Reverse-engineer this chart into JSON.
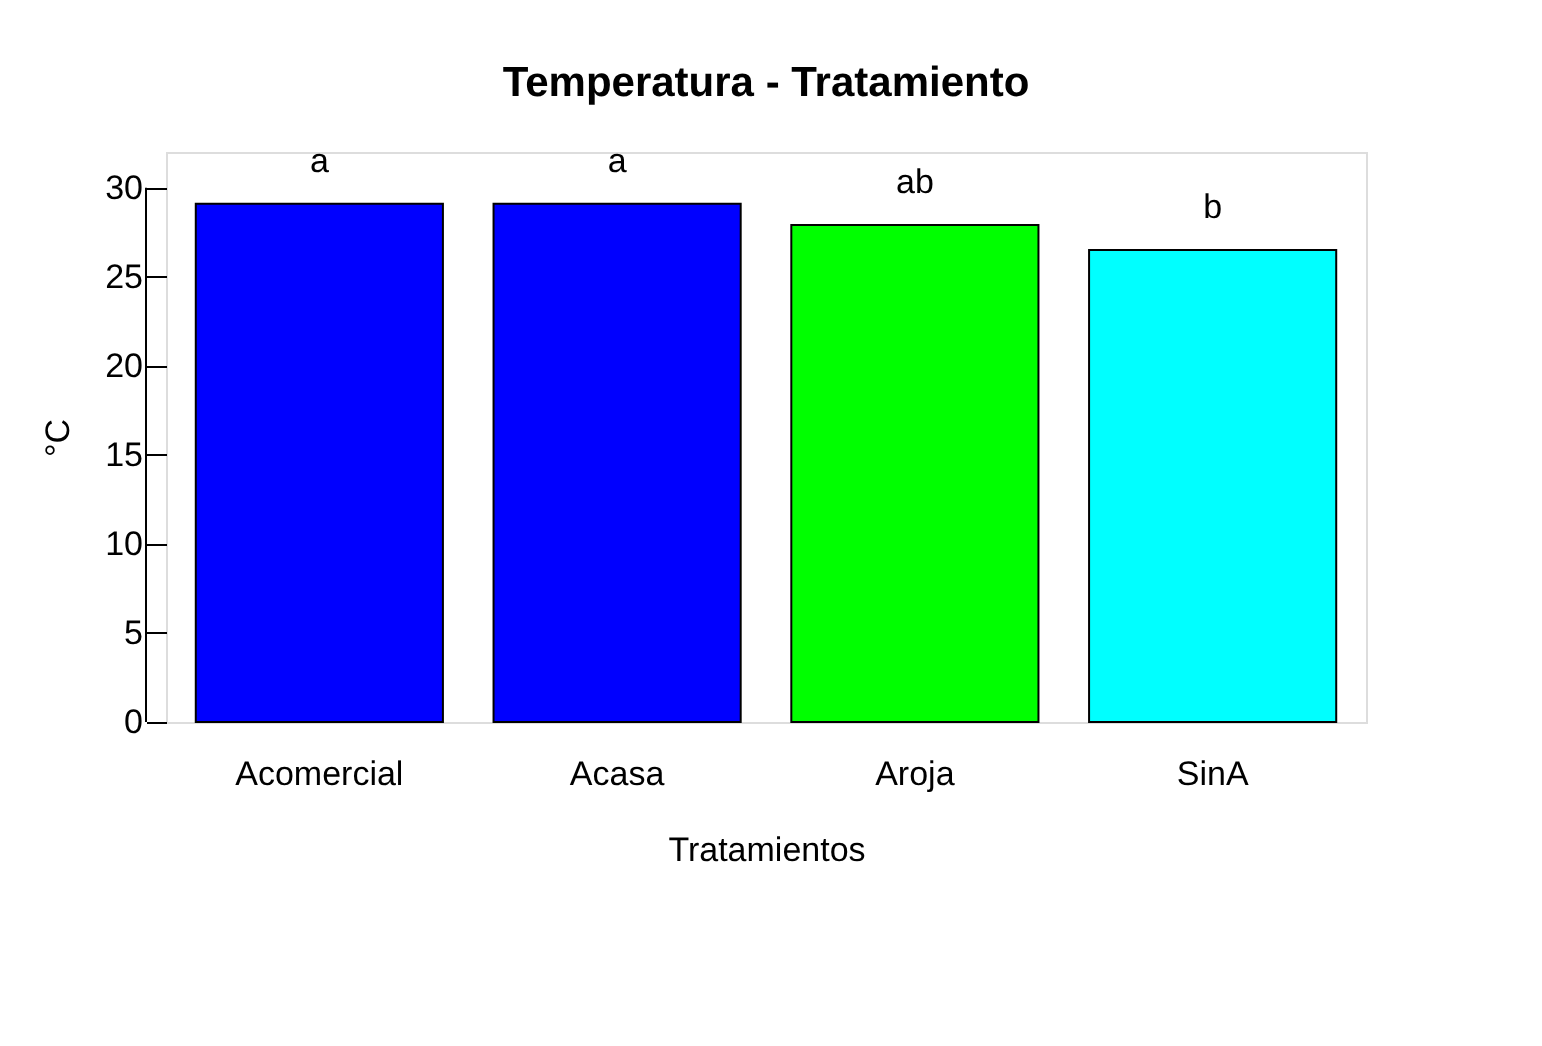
{
  "chart_data": {
    "type": "bar",
    "title": "Temperatura - Tratamiento",
    "xlabel": "Tratamientos",
    "ylabel": "°C",
    "categories": [
      "Acomercial",
      "Acasa",
      "Aroja",
      "SinA"
    ],
    "values": [
      29.1,
      29.1,
      27.9,
      26.5
    ],
    "colors": [
      "#0000ff",
      "#0000ff",
      "#00ff00",
      "#00ffff"
    ],
    "ylim": [
      0,
      32
    ],
    "yticks": [
      0,
      5,
      10,
      15,
      20,
      25,
      30
    ],
    "grid": false,
    "annotations": [
      "a",
      "a",
      "ab",
      "b"
    ]
  }
}
